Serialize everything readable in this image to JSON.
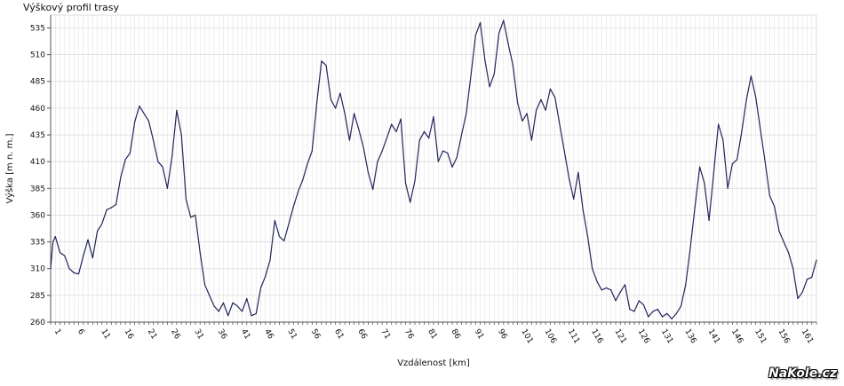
{
  "chart_data": {
    "type": "line",
    "title": "Výškový profil trasy",
    "xlabel": "Vzdálenost [km]",
    "ylabel": "Výška [m n. m.]",
    "xlim": [
      0,
      164
    ],
    "ylim": [
      260,
      547
    ],
    "grid": true,
    "legend": "none",
    "colors": {
      "line": "#23245c",
      "grid": "#dcdcdc",
      "axis": "#555555"
    },
    "x_ticks": [
      1,
      6,
      11,
      16,
      21,
      26,
      31,
      36,
      41,
      46,
      51,
      56,
      61,
      66,
      71,
      76,
      81,
      86,
      91,
      96,
      101,
      106,
      111,
      116,
      121,
      126,
      131,
      136,
      141,
      146,
      151,
      156,
      161
    ],
    "y_ticks": [
      260,
      285,
      310,
      335,
      360,
      385,
      410,
      435,
      460,
      485,
      510,
      535
    ],
    "series": [
      {
        "x": [
          0,
          0.5,
          1,
          2,
          3,
          4,
          5,
          6,
          7,
          8,
          9,
          10,
          11,
          12,
          13,
          14,
          15,
          16,
          17,
          18,
          19,
          20,
          21,
          22,
          23,
          24,
          25,
          26,
          27,
          28,
          29,
          30,
          31,
          32,
          33,
          34,
          35,
          36,
          37,
          38,
          39,
          40,
          41,
          42,
          43,
          44,
          45,
          46,
          47,
          48,
          49,
          50,
          51,
          52,
          53,
          54,
          55,
          56,
          57,
          58,
          59,
          60,
          61,
          62,
          63,
          64,
          65,
          66,
          67,
          68,
          69,
          70,
          71,
          72,
          73,
          74,
          75,
          76,
          77,
          78,
          79,
          80,
          81,
          82,
          83,
          84,
          85,
          86,
          87,
          88,
          89,
          90,
          91,
          92,
          93,
          94,
          95,
          96,
          97,
          98,
          99,
          100,
          101,
          102,
          103,
          104,
          105,
          106,
          107,
          108,
          109,
          110,
          111,
          112,
          113,
          114,
          115,
          116,
          117,
          118,
          119,
          120,
          121,
          122,
          123,
          124,
          125,
          126,
          127,
          128,
          129,
          130,
          131,
          132,
          133,
          134,
          135,
          136,
          137,
          138,
          139,
          140,
          141,
          142,
          143,
          144,
          145,
          146,
          147,
          148,
          149,
          150,
          151,
          152,
          153,
          154,
          155,
          156,
          157,
          158,
          159,
          160,
          161,
          162,
          163,
          164
        ],
        "values": [
          310,
          335,
          340,
          325,
          322,
          310,
          306,
          305,
          322,
          337,
          320,
          345,
          352,
          365,
          367,
          370,
          395,
          412,
          418,
          447,
          462,
          455,
          448,
          430,
          410,
          405,
          385,
          415,
          458,
          435,
          375,
          358,
          360,
          325,
          295,
          285,
          275,
          270,
          278,
          266,
          278,
          275,
          270,
          282,
          266,
          268,
          292,
          303,
          318,
          355,
          340,
          336,
          352,
          368,
          382,
          393,
          408,
          420,
          465,
          504,
          500,
          468,
          460,
          474,
          455,
          430,
          455,
          440,
          423,
          400,
          384,
          410,
          420,
          432,
          445,
          438,
          450,
          390,
          372,
          392,
          430,
          438,
          432,
          452,
          410,
          420,
          418,
          405,
          414,
          435,
          455,
          490,
          528,
          540,
          505,
          480,
          492,
          530,
          542,
          520,
          500,
          465,
          448,
          455,
          430,
          458,
          468,
          458,
          478,
          470,
          445,
          420,
          395,
          375,
          400,
          365,
          340,
          310,
          298,
          290,
          292,
          290,
          280,
          288,
          295,
          272,
          270,
          280,
          276,
          265,
          270,
          272,
          265,
          268,
          263,
          268,
          275,
          295,
          330,
          368,
          405,
          390,
          355,
          400,
          445,
          430,
          385,
          408,
          412,
          438,
          468,
          490,
          470,
          440,
          410,
          378,
          368,
          345,
          335,
          325,
          310,
          282,
          288,
          300,
          302,
          318
        ]
      }
    ]
  },
  "watermark": "NaKole.cz"
}
